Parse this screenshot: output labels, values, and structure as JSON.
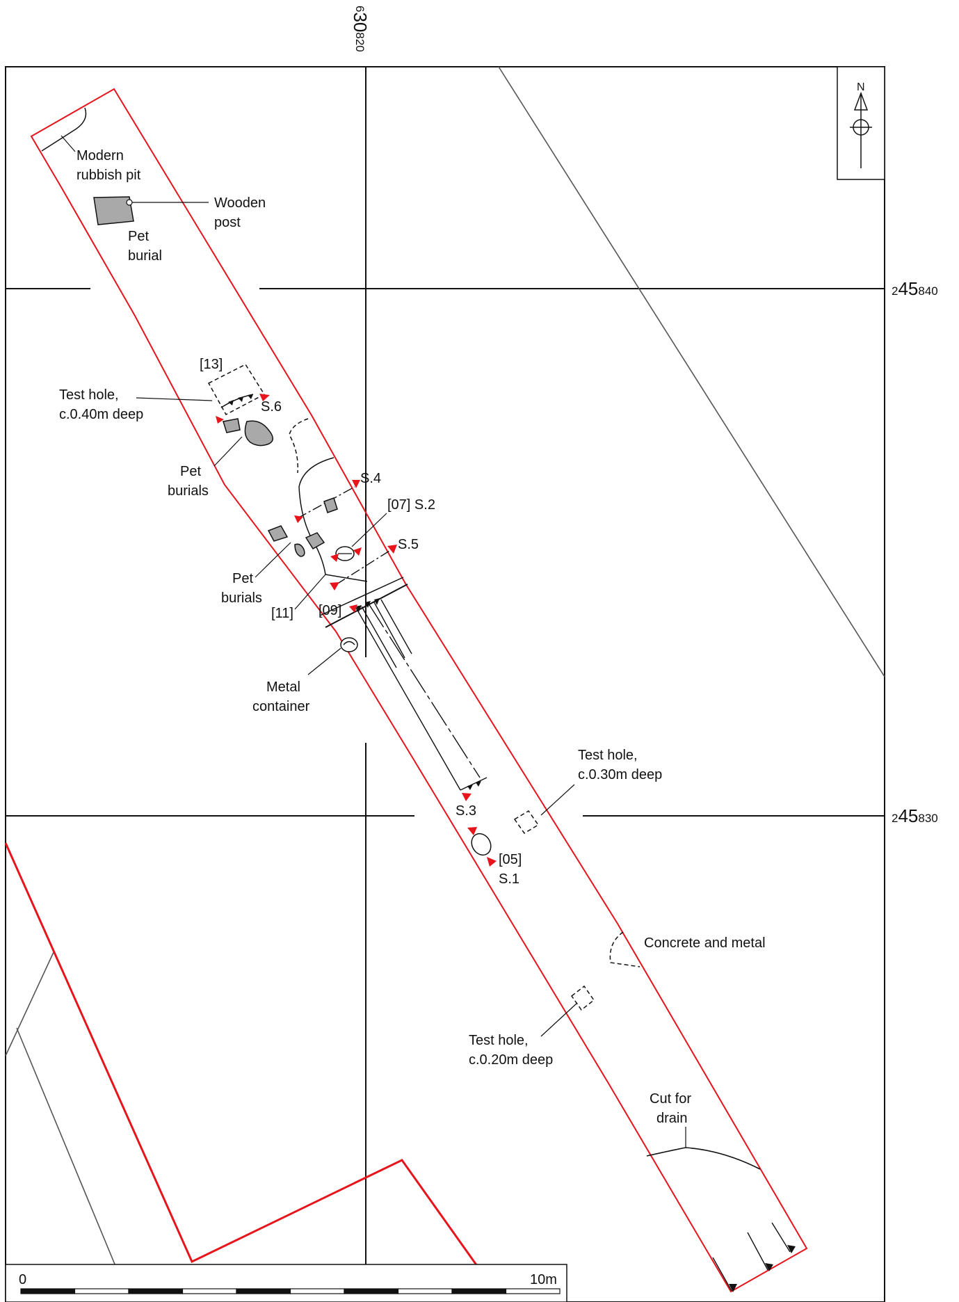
{
  "colors": {
    "trench": "#e8141c",
    "line": "#111111",
    "grid": "#111111",
    "feature_fill": "#a9a9a9",
    "marker": "#e8141c",
    "thin_line": "#555555"
  },
  "grid": {
    "easting": {
      "prefix": "6",
      "main": "30",
      "suffix": "820"
    },
    "northing_upper": {
      "prefix": "2",
      "main": "45",
      "suffix": "840"
    },
    "northing_lower": {
      "prefix": "2",
      "main": "45",
      "suffix": "830"
    }
  },
  "north_arrow": {
    "label": "N",
    "icon": "north-arrow-icon"
  },
  "labels": {
    "modern_pit": [
      "Modern",
      "rubbish pit"
    ],
    "wooden_post": [
      "Wooden",
      "post"
    ],
    "pet_burial": [
      "Pet",
      "burial"
    ],
    "context_13": "[13]",
    "test_hole_040": [
      "Test hole,",
      "c.0.40m deep"
    ],
    "section_6": "S.6",
    "pet_burials_upper": [
      "Pet",
      "burials"
    ],
    "section_4": "S.4",
    "context_07_s2": "[07] S.2",
    "section_5": "S.5",
    "pet_burials_lower": [
      "Pet",
      "burials"
    ],
    "context_11": "[11]",
    "context_09": "[09]",
    "metal_container": [
      "Metal",
      "container"
    ],
    "test_hole_030": [
      "Test hole,",
      "c.0.30m deep"
    ],
    "section_3": "S.3",
    "context_05": "[05]",
    "section_1": "S.1",
    "concrete_metal": "Concrete and metal",
    "test_hole_020": [
      "Test hole,",
      "c.0.20m deep"
    ],
    "cut_for_drain": [
      "Cut for",
      "drain"
    ]
  },
  "scale_bar": {
    "start_label": "0",
    "end_label": "10m",
    "segments": 10
  }
}
